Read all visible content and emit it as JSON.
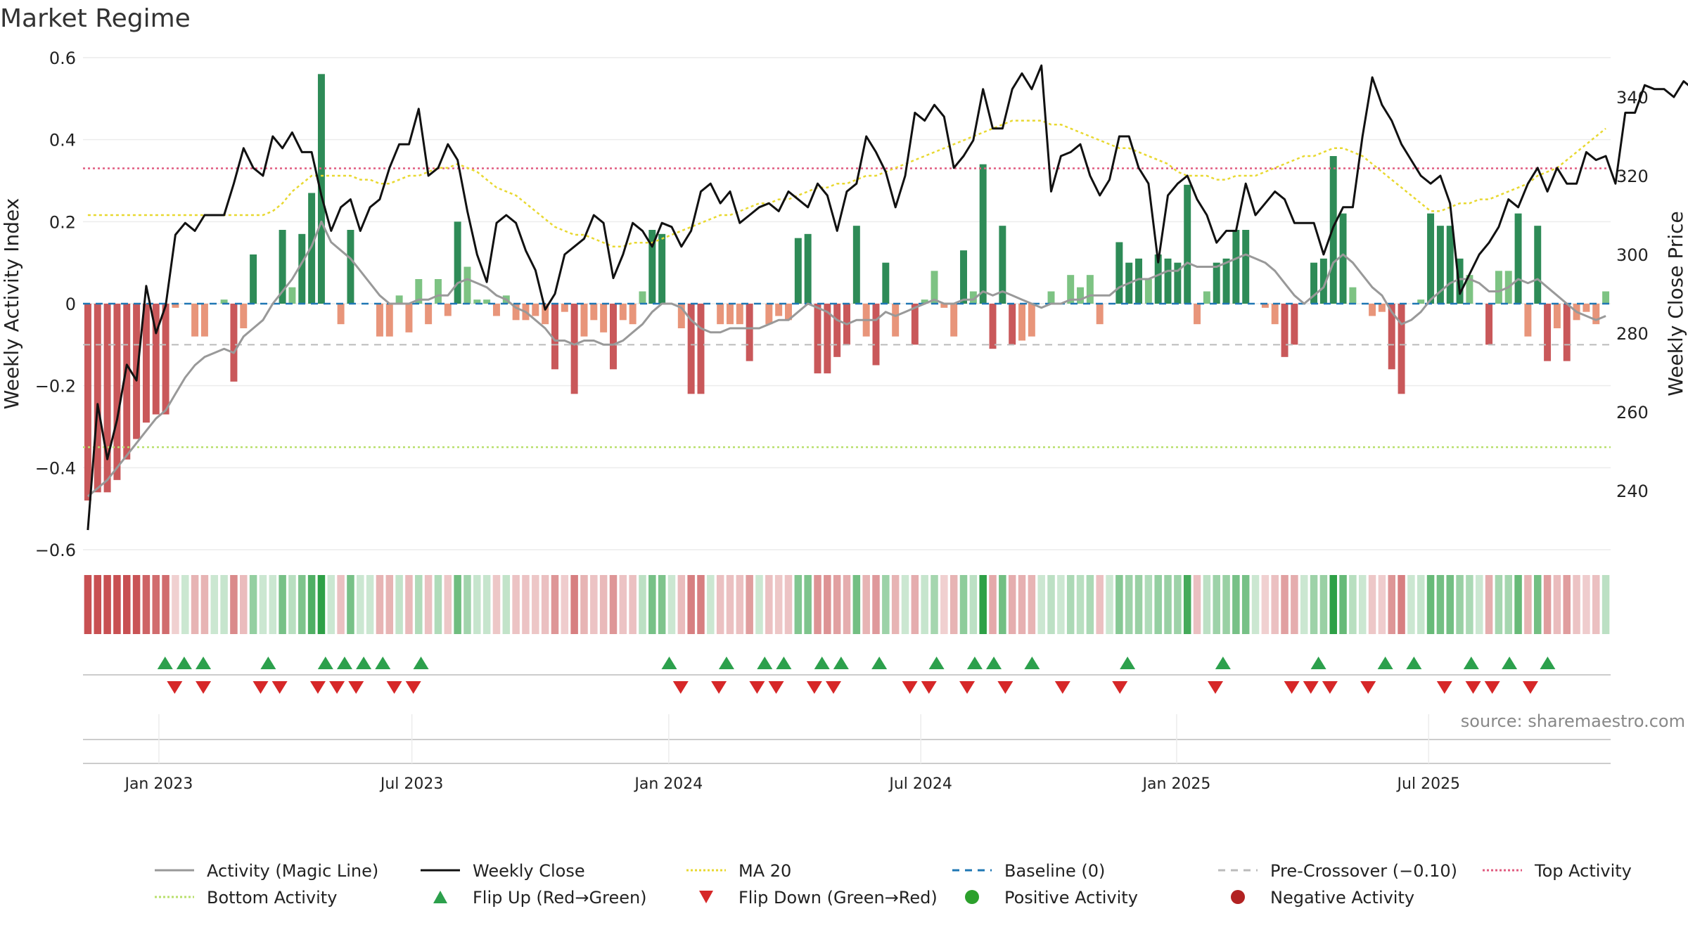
{
  "title": "Market Regime",
  "source": "source: sharemaestro.com",
  "colors": {
    "strong_green": "#2e8b57",
    "light_green": "#7dc383",
    "strong_red": "#c9585a",
    "light_red": "#e8957a",
    "price": "#111111",
    "activity": "#999999",
    "ma20": "#e8d830",
    "baseline": "#1f77b4",
    "pre_crossover": "#bbbbbb",
    "top_activity": "#e05c80",
    "bottom_activity": "#b8df6b",
    "flip_up": "#2ca04c",
    "flip_down": "#d62728",
    "positive": "#2ca02c",
    "negative": "#b22222"
  },
  "chart_data": {
    "type": "bar",
    "title": "Market Regime",
    "ylabel_left": "Weekly Activity Index",
    "ylabel_right": "Weekly Close Price",
    "ylim_left": [
      -0.6,
      0.6
    ],
    "ylim_right": [
      225,
      350
    ],
    "yticks_left": [
      0.6,
      0.4,
      0.2,
      0,
      -0.2,
      -0.4,
      -0.6
    ],
    "ytick_labels_left": [
      "0.6",
      "0.4",
      "0.2",
      "0",
      "−0.2",
      "−0.4",
      "−0.6"
    ],
    "yticks_right": [
      340,
      320,
      300,
      280,
      260,
      240
    ],
    "x_tick_labels": [
      "Jan 2023",
      "Jul 2023",
      "Jan 2024",
      "Jul 2024",
      "Jan 2025",
      "Jul 2025"
    ],
    "x_tick_weeks": [
      7.3,
      33.3,
      59.7,
      85.6,
      111.9,
      137.8
    ],
    "num_weeks": 157,
    "activity_index": [
      -0.48,
      -0.46,
      -0.46,
      -0.43,
      -0.38,
      -0.33,
      -0.29,
      -0.27,
      -0.27,
      -0.01,
      0.0,
      -0.08,
      -0.08,
      0.0,
      0.01,
      -0.19,
      -0.06,
      0.12,
      0.0,
      0.0,
      0.18,
      0.04,
      0.17,
      0.27,
      0.56,
      0.0,
      -0.05,
      0.18,
      0.0,
      0.0,
      -0.08,
      -0.08,
      0.02,
      -0.07,
      0.06,
      -0.05,
      0.06,
      -0.03,
      0.2,
      0.09,
      0.01,
      0.01,
      -0.03,
      0.02,
      -0.04,
      -0.04,
      -0.03,
      -0.05,
      -0.16,
      -0.02,
      -0.22,
      -0.08,
      -0.04,
      -0.07,
      -0.16,
      -0.04,
      -0.05,
      0.03,
      0.18,
      0.17,
      0.0,
      -0.06,
      -0.22,
      -0.22,
      0.0,
      -0.05,
      -0.05,
      -0.05,
      -0.14,
      0.0,
      -0.05,
      -0.03,
      -0.04,
      0.16,
      0.17,
      -0.17,
      -0.17,
      -0.13,
      -0.1,
      0.19,
      -0.08,
      -0.15,
      0.1,
      -0.08,
      0.0,
      -0.1,
      0.01,
      0.08,
      -0.01,
      -0.08,
      0.13,
      0.03,
      0.34,
      -0.11,
      0.19,
      -0.1,
      -0.09,
      -0.08,
      0.0,
      0.03,
      0.0,
      0.07,
      0.04,
      0.07,
      -0.05,
      0.0,
      0.15,
      0.1,
      0.11,
      0.06,
      0.12,
      0.11,
      0.1,
      0.29,
      -0.05,
      0.03,
      0.1,
      0.11,
      0.18,
      0.18,
      0.0,
      -0.01,
      -0.05,
      -0.13,
      -0.1,
      0.0,
      0.1,
      0.11,
      0.36,
      0.22,
      0.04,
      0.0,
      -0.03,
      -0.02,
      -0.16,
      -0.22,
      0.0,
      0.01,
      0.22,
      0.19,
      0.19,
      0.11,
      0.07,
      0.0,
      -0.1,
      0.08,
      0.08,
      0.22,
      -0.08,
      0.19,
      -0.14,
      -0.06,
      -0.14,
      -0.04,
      -0.02,
      -0.05,
      0.03
    ],
    "weekly_close": [
      230,
      262,
      248,
      258,
      272,
      268,
      292,
      280,
      287,
      305,
      308,
      306,
      310,
      310,
      310,
      318,
      327,
      322,
      320,
      330,
      327,
      331,
      326,
      326,
      315,
      306,
      312,
      314,
      306,
      312,
      314,
      322,
      328,
      328,
      337,
      320,
      322,
      328,
      324,
      311,
      300,
      293,
      308,
      310,
      308,
      301,
      296,
      286,
      290,
      300,
      302,
      304,
      310,
      308,
      294,
      300,
      308,
      306,
      302,
      308,
      307,
      302,
      306,
      316,
      318,
      313,
      316,
      308,
      310,
      312,
      313,
      311,
      316,
      314,
      312,
      318,
      315,
      306,
      316,
      318,
      330,
      326,
      321,
      312,
      320,
      336,
      334,
      338,
      335,
      322,
      325,
      329,
      342,
      332,
      332,
      342,
      346,
      342,
      348,
      316,
      325,
      326,
      328,
      320,
      315,
      319,
      330,
      330,
      322,
      318,
      298,
      315,
      318,
      320,
      314,
      310,
      303,
      306,
      306,
      318,
      310,
      313,
      316,
      314,
      308,
      308,
      308,
      300,
      307,
      312,
      312,
      330,
      345,
      338,
      334,
      328,
      324,
      320,
      318,
      320,
      313,
      290,
      295,
      300,
      303,
      307,
      314,
      312,
      318,
      322,
      316,
      322,
      318,
      318,
      326,
      324,
      325,
      318,
      336,
      336,
      343,
      342,
      342,
      340,
      344,
      342,
      337
    ],
    "ma20": [
      310,
      310,
      310,
      310,
      310,
      310,
      310,
      310,
      310,
      310,
      310,
      310,
      310,
      310,
      310,
      310,
      310,
      310,
      310,
      311,
      313,
      316,
      318,
      320,
      320,
      320,
      320,
      320,
      319,
      319,
      318,
      318,
      319,
      320,
      320,
      321,
      322,
      322,
      323,
      322,
      321,
      319,
      317,
      316,
      315,
      313,
      311,
      309,
      307,
      306,
      305,
      305,
      304,
      303,
      302,
      302,
      303,
      303,
      303,
      304,
      305,
      306,
      307,
      308,
      309,
      310,
      310,
      311,
      312,
      313,
      313,
      314,
      314,
      315,
      316,
      317,
      317,
      318,
      318,
      319,
      320,
      320,
      321,
      322,
      323,
      324,
      325,
      326,
      327,
      328,
      329,
      330,
      331,
      332,
      333,
      334,
      334,
      334,
      334,
      333,
      333,
      332,
      331,
      330,
      329,
      328,
      327,
      327,
      326,
      325,
      324,
      323,
      321,
      320,
      320,
      320,
      319,
      319,
      320,
      320,
      320,
      321,
      322,
      323,
      324,
      325,
      325,
      326,
      327,
      327,
      326,
      325,
      323,
      321,
      319,
      317,
      315,
      313,
      311,
      311,
      312,
      313,
      313,
      314,
      314,
      315,
      316,
      317,
      318,
      320,
      321,
      322,
      324,
      326,
      328,
      330,
      332
    ],
    "magic_line": [
      -0.47,
      -0.45,
      -0.43,
      -0.4,
      -0.37,
      -0.34,
      -0.31,
      -0.28,
      -0.26,
      -0.22,
      -0.18,
      -0.15,
      -0.13,
      -0.12,
      -0.11,
      -0.12,
      -0.08,
      -0.06,
      -0.04,
      0.0,
      0.03,
      0.06,
      0.1,
      0.14,
      0.2,
      0.15,
      0.13,
      0.11,
      0.08,
      0.05,
      0.02,
      0.0,
      0.0,
      0.0,
      0.01,
      0.01,
      0.02,
      0.02,
      0.05,
      0.06,
      0.05,
      0.04,
      0.02,
      0.01,
      -0.01,
      -0.02,
      -0.04,
      -0.06,
      -0.09,
      -0.09,
      -0.1,
      -0.09,
      -0.09,
      -0.1,
      -0.1,
      -0.09,
      -0.07,
      -0.05,
      -0.02,
      0.0,
      0.0,
      -0.01,
      -0.04,
      -0.06,
      -0.07,
      -0.07,
      -0.06,
      -0.06,
      -0.06,
      -0.06,
      -0.05,
      -0.04,
      -0.04,
      -0.02,
      0.0,
      -0.01,
      -0.02,
      -0.04,
      -0.05,
      -0.04,
      -0.04,
      -0.04,
      -0.02,
      -0.03,
      -0.02,
      -0.01,
      0.0,
      0.01,
      0.0,
      0.0,
      0.01,
      0.01,
      0.03,
      0.02,
      0.03,
      0.02,
      0.01,
      0.0,
      -0.01,
      0.0,
      0.0,
      0.01,
      0.01,
      0.02,
      0.02,
      0.02,
      0.04,
      0.05,
      0.06,
      0.06,
      0.07,
      0.08,
      0.08,
      0.1,
      0.09,
      0.09,
      0.09,
      0.1,
      0.11,
      0.12,
      0.11,
      0.1,
      0.08,
      0.05,
      0.02,
      0.0,
      0.02,
      0.04,
      0.1,
      0.12,
      0.1,
      0.07,
      0.04,
      0.02,
      -0.02,
      -0.05,
      -0.04,
      -0.02,
      0.01,
      0.03,
      0.05,
      0.06,
      0.06,
      0.05,
      0.03,
      0.03,
      0.04,
      0.06,
      0.05,
      0.06,
      0.04,
      0.02,
      0.0,
      -0.02,
      -0.03,
      -0.04,
      -0.03
    ],
    "baseline": 0.0,
    "pre_crossover": -0.1,
    "top_activity": 0.33,
    "bottom_activity": -0.35,
    "flip_up_weeks": [
      4.3,
      5.3,
      6.3,
      9.7,
      12.7,
      13.7,
      14.7,
      15.7,
      17.7,
      30.7,
      33.7,
      35.7,
      36.7,
      38.7,
      39.7,
      41.7,
      44.7,
      46.7,
      47.7,
      49.7,
      54.7,
      59.7,
      64.7,
      68.2,
      69.7,
      72.7,
      74.7,
      76.7
    ],
    "flip_down_weeks": [
      4.8,
      6.3,
      9.3,
      10.3,
      12.3,
      13.3,
      14.3,
      16.3,
      17.3,
      31.3,
      33.3,
      35.3,
      36.3,
      38.3,
      39.3,
      43.3,
      44.3,
      46.3,
      48.3,
      51.3,
      54.3,
      59.3,
      63.3,
      64.3,
      65.3,
      67.3,
      71.3,
      72.8,
      73.8,
      75.8
    ],
    "legend": [
      {
        "label": "Activity (Magic Line)",
        "kind": "line",
        "color": "#999999",
        "dash": ""
      },
      {
        "label": "Weekly Close",
        "kind": "line",
        "color": "#111111",
        "dash": ""
      },
      {
        "label": "MA 20",
        "kind": "line",
        "color": "#e8d830",
        "dash": "3,3"
      },
      {
        "label": "Baseline (0)",
        "kind": "line",
        "color": "#1f77b4",
        "dash": "10,8"
      },
      {
        "label": "Pre-Crossover (−0.10)",
        "kind": "line",
        "color": "#bbbbbb",
        "dash": "10,8"
      },
      {
        "label": "Top Activity",
        "kind": "line",
        "color": "#e05c80",
        "dash": "3,3"
      },
      {
        "label": "Bottom Activity",
        "kind": "line",
        "color": "#b8df6b",
        "dash": "3,3"
      },
      {
        "label": "Flip Up (Red→Green)",
        "kind": "tri-up",
        "color": "#2ca04c",
        "dash": ""
      },
      {
        "label": "Flip Down (Green→Red)",
        "kind": "tri-down",
        "color": "#d62728",
        "dash": ""
      },
      {
        "label": "Positive Activity",
        "kind": "dot",
        "color": "#2ca02c",
        "dash": ""
      },
      {
        "label": "Negative Activity",
        "kind": "dot",
        "color": "#b22222",
        "dash": ""
      }
    ],
    "legend_placement": "bottom",
    "grid": true
  }
}
